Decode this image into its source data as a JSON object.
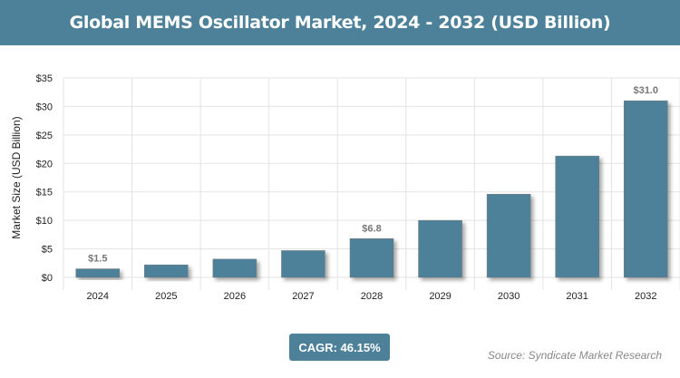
{
  "title": "Global MEMS Oscillator Market, 2024 - 2032 (USD Billion)",
  "cagr_label": "CAGR: 46.15%",
  "source": "Source: Syndicate Market Research",
  "colors": {
    "bar": "#4d8199",
    "header": "#4d8199"
  },
  "chart_data": {
    "type": "bar",
    "title": "Global MEMS Oscillator Market, 2024 - 2032 (USD Billion)",
    "xlabel": "",
    "ylabel": "Market Size (USD Billion)",
    "categories": [
      "2024",
      "2025",
      "2026",
      "2027",
      "2028",
      "2029",
      "2030",
      "2031",
      "2032"
    ],
    "values": [
      1.5,
      2.2,
      3.2,
      4.7,
      6.8,
      10.0,
      14.6,
      21.3,
      31.0
    ],
    "data_labels": {
      "0": "$1.5",
      "4": "$6.8",
      "8": "$31.0"
    },
    "ylim": [
      0,
      35
    ],
    "yticks": [
      0,
      5,
      10,
      15,
      20,
      25,
      30,
      35
    ],
    "ytick_labels": [
      "$0",
      "$5",
      "$10",
      "$15",
      "$20",
      "$25",
      "$30",
      "$35"
    ],
    "grid": true,
    "legend": "none"
  }
}
